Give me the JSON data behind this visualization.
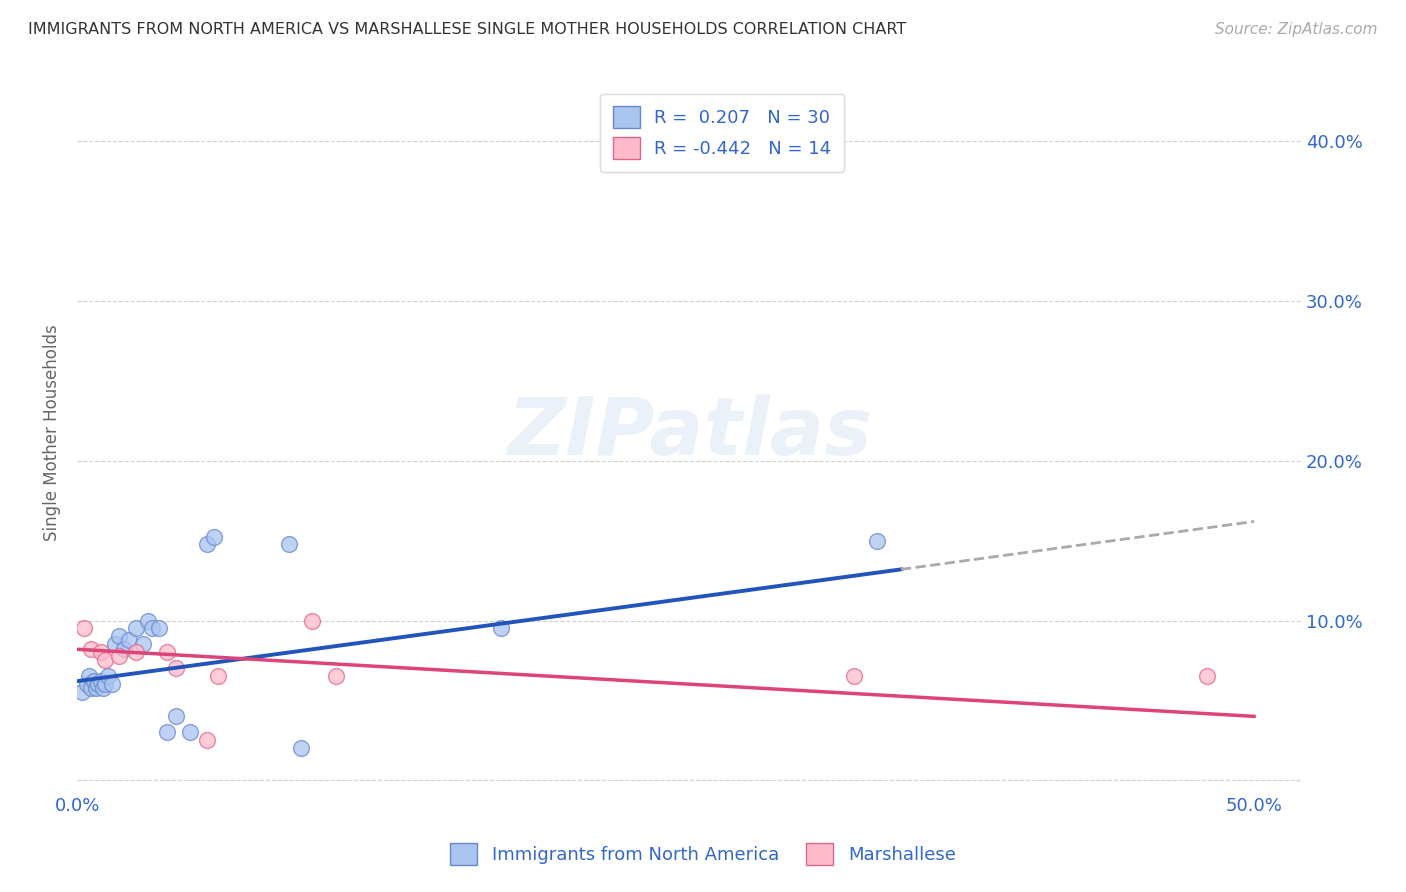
{
  "title": "IMMIGRANTS FROM NORTH AMERICA VS MARSHALLESE SINGLE MOTHER HOUSEHOLDS CORRELATION CHART",
  "source": "Source: ZipAtlas.com",
  "ylabel": "Single Mother Households",
  "xlim": [
    0.0,
    0.52
  ],
  "ylim": [
    -0.005,
    0.44
  ],
  "blue_scatter_x": [
    0.002,
    0.004,
    0.005,
    0.006,
    0.007,
    0.008,
    0.009,
    0.01,
    0.011,
    0.012,
    0.013,
    0.015,
    0.016,
    0.018,
    0.02,
    0.022,
    0.025,
    0.028,
    0.03,
    0.032,
    0.035,
    0.038,
    0.042,
    0.048,
    0.055,
    0.058,
    0.09,
    0.095,
    0.18,
    0.34
  ],
  "blue_scatter_y": [
    0.055,
    0.06,
    0.065,
    0.058,
    0.062,
    0.058,
    0.06,
    0.062,
    0.058,
    0.06,
    0.065,
    0.06,
    0.085,
    0.09,
    0.082,
    0.088,
    0.095,
    0.085,
    0.1,
    0.095,
    0.095,
    0.03,
    0.04,
    0.03,
    0.148,
    0.152,
    0.148,
    0.02,
    0.095,
    0.15
  ],
  "pink_scatter_x": [
    0.003,
    0.006,
    0.01,
    0.012,
    0.018,
    0.025,
    0.038,
    0.042,
    0.055,
    0.06,
    0.1,
    0.11,
    0.33,
    0.48
  ],
  "pink_scatter_y": [
    0.095,
    0.082,
    0.08,
    0.075,
    0.078,
    0.08,
    0.08,
    0.07,
    0.025,
    0.065,
    0.1,
    0.065,
    0.065,
    0.065
  ],
  "blue_R": 0.207,
  "blue_N": 30,
  "pink_R": -0.442,
  "pink_N": 14,
  "blue_line_x_start": 0.0,
  "blue_line_x_solid_end": 0.35,
  "blue_line_x_dash_end": 0.5,
  "blue_line_y_start": 0.062,
  "blue_line_y_solid_end": 0.132,
  "blue_line_y_dash_end": 0.162,
  "pink_line_x_start": 0.0,
  "pink_line_x_end": 0.5,
  "pink_line_y_start": 0.082,
  "pink_line_y_end": 0.04,
  "blue_line_color": "#2255bb",
  "pink_line_color": "#dd4477",
  "blue_scatter_facecolor": "#aac4f0",
  "blue_scatter_edgecolor": "#6688cc",
  "pink_scatter_facecolor": "#ffbbcc",
  "pink_scatter_edgecolor": "#dd6688",
  "dashed_line_color": "#aaaaaa",
  "watermark_text": "ZIPatlas",
  "background_color": "#ffffff",
  "grid_color": "#cccccc",
  "title_color": "#333333",
  "axis_label_color": "#3366cc",
  "source_color": "#aaaaaa",
  "legend_text_color": "#3366cc",
  "ylabel_color": "#666666"
}
